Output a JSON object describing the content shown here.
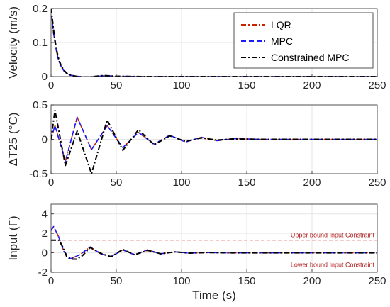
{
  "chart_data": [
    {
      "type": "line",
      "ylabel": "Velocity (m/s)",
      "xlim": [
        0,
        250
      ],
      "ylim": [
        0,
        0.2
      ],
      "xticks": [
        0,
        50,
        100,
        150,
        200,
        250
      ],
      "yticks": [
        0,
        0.1,
        0.2
      ],
      "ytick_labels": [
        "0",
        "0.1",
        "0.2"
      ],
      "grid": true,
      "legend": [
        "LQR",
        "MPC",
        "Constrained MPC"
      ],
      "legend_position": "top-right",
      "series": [
        {
          "name": "LQR",
          "color": "#cc2200",
          "dash": "dashdot",
          "x": [
            0,
            1,
            2,
            3,
            4,
            5,
            6,
            8,
            10,
            12,
            15,
            20,
            25,
            30,
            35,
            40,
            45,
            50,
            60,
            70,
            80,
            100,
            150,
            200,
            250
          ],
          "y": [
            0.2,
            0.16,
            0.125,
            0.1,
            0.078,
            0.06,
            0.046,
            0.027,
            0.016,
            0.009,
            0.004,
            0.001,
            -0.001,
            -0.001,
            0.001,
            0.002,
            0.002,
            0.001,
            0.0005,
            0,
            0,
            0,
            0,
            0,
            0
          ]
        },
        {
          "name": "MPC",
          "color": "#1a1aff",
          "dash": "dashed",
          "x": [
            0,
            1,
            2,
            3,
            4,
            5,
            6,
            8,
            10,
            12,
            15,
            20,
            25,
            30,
            35,
            40,
            45,
            50,
            60,
            70,
            80,
            100,
            150,
            200,
            250
          ],
          "y": [
            0.2,
            0.16,
            0.125,
            0.1,
            0.078,
            0.06,
            0.046,
            0.027,
            0.016,
            0.009,
            0.004,
            0.001,
            -0.001,
            -0.001,
            0.001,
            0.002,
            0.002,
            0.001,
            0.0005,
            0,
            0,
            0,
            0,
            0,
            0
          ]
        },
        {
          "name": "Constrained MPC",
          "color": "#000000",
          "dash": "dashdot",
          "x": [
            0,
            1,
            2,
            3,
            4,
            5,
            6,
            8,
            10,
            12,
            15,
            20,
            25,
            30,
            35,
            40,
            45,
            50,
            60,
            70,
            80,
            100,
            150,
            200,
            250
          ],
          "y": [
            0.2,
            0.17,
            0.135,
            0.108,
            0.084,
            0.065,
            0.05,
            0.03,
            0.018,
            0.01,
            0.004,
            0,
            -0.002,
            -0.001,
            0.001,
            0.003,
            0.002,
            0.001,
            0.0005,
            0,
            0,
            0,
            0,
            0,
            0
          ]
        }
      ]
    },
    {
      "type": "line",
      "ylabel": "ΔT25 (°C)",
      "xlim": [
        0,
        250
      ],
      "ylim": [
        -0.5,
        0.5
      ],
      "xticks": [
        0,
        50,
        100,
        150,
        200,
        250
      ],
      "yticks": [
        -0.5,
        0,
        0.5
      ],
      "ytick_labels": [
        "-0.5",
        "0",
        "0.5"
      ],
      "grid": true,
      "series": [
        {
          "name": "LQR",
          "color": "#cc2200",
          "dash": "dashdot",
          "x": [
            0,
            3,
            11,
            20,
            31,
            43,
            55,
            67,
            79,
            91,
            103,
            115,
            127,
            140,
            160,
            200,
            250
          ],
          "y": [
            0,
            0.2,
            -0.32,
            0.32,
            -0.15,
            0.2,
            -0.12,
            0.1,
            -0.07,
            0.06,
            -0.04,
            0.03,
            -0.02,
            0.01,
            0,
            0,
            0
          ]
        },
        {
          "name": "MPC",
          "color": "#1a1aff",
          "dash": "dashed",
          "x": [
            0,
            3,
            11,
            20,
            31,
            43,
            55,
            67,
            79,
            91,
            103,
            115,
            127,
            140,
            160,
            200,
            250
          ],
          "y": [
            0,
            0.2,
            -0.32,
            0.32,
            -0.15,
            0.2,
            -0.12,
            0.1,
            -0.07,
            0.06,
            -0.04,
            0.03,
            -0.02,
            0.01,
            0,
            0,
            0
          ]
        },
        {
          "name": "Constrained MPC",
          "color": "#000000",
          "dash": "dashdot",
          "x": [
            0,
            3,
            11,
            20,
            31,
            43,
            55,
            67,
            79,
            91,
            103,
            115,
            127,
            140,
            160,
            200,
            250
          ],
          "y": [
            0,
            0.42,
            -0.38,
            0.12,
            -0.5,
            0.28,
            -0.16,
            0.14,
            -0.08,
            0.05,
            -0.03,
            0.02,
            -0.01,
            0.005,
            0,
            0,
            0
          ]
        }
      ]
    },
    {
      "type": "line",
      "ylabel": "Input (Γ)",
      "xlabel": "Time (s)",
      "xlim": [
        0,
        250
      ],
      "ylim": [
        -2,
        5
      ],
      "xticks": [
        0,
        50,
        100,
        150,
        200,
        250
      ],
      "yticks": [
        -2,
        0,
        2,
        4
      ],
      "ytick_labels": [
        "-2",
        "0",
        "2",
        "4"
      ],
      "grid": true,
      "bounds": [
        {
          "label": "Upper bound Input Constraint",
          "value": 1.3,
          "color": "#d42a2a"
        },
        {
          "label": "Lower bound Input Constraint",
          "value": -0.65,
          "color": "#d42a2a"
        }
      ],
      "series": [
        {
          "name": "LQR",
          "color": "#cc2200",
          "dash": "dashdot",
          "x": [
            0,
            2,
            6,
            10,
            15,
            22,
            30,
            38,
            46,
            55,
            64,
            74,
            84,
            95,
            106,
            120,
            135,
            150,
            200,
            250
          ],
          "y": [
            2.3,
            2.7,
            1.6,
            0.1,
            -0.6,
            -0.2,
            0.6,
            -0.1,
            -0.4,
            0.3,
            -0.2,
            0.3,
            -0.1,
            0.1,
            -0.03,
            0.03,
            0,
            0,
            0,
            0
          ]
        },
        {
          "name": "MPC",
          "color": "#1a1aff",
          "dash": "dashed",
          "x": [
            0,
            2,
            6,
            10,
            15,
            22,
            30,
            38,
            46,
            55,
            64,
            74,
            84,
            95,
            106,
            120,
            135,
            150,
            200,
            250
          ],
          "y": [
            2.3,
            2.7,
            1.6,
            0.1,
            -0.6,
            -0.2,
            0.6,
            -0.1,
            -0.4,
            0.3,
            -0.2,
            0.3,
            -0.1,
            0.1,
            -0.03,
            0.03,
            0,
            0,
            0,
            0
          ]
        },
        {
          "name": "Constrained MPC",
          "color": "#000000",
          "dash": "dashdot",
          "x": [
            0,
            6,
            9,
            12,
            15,
            20,
            24,
            30,
            38,
            46,
            55,
            64,
            74,
            84,
            95,
            106,
            120,
            135,
            150,
            200,
            250
          ],
          "y": [
            1.3,
            1.3,
            0.6,
            -0.4,
            -0.65,
            -0.65,
            -0.3,
            0.55,
            -0.05,
            -0.4,
            0.35,
            -0.2,
            0.25,
            -0.1,
            0.1,
            -0.03,
            0.03,
            0,
            0,
            0,
            0
          ]
        }
      ]
    }
  ]
}
